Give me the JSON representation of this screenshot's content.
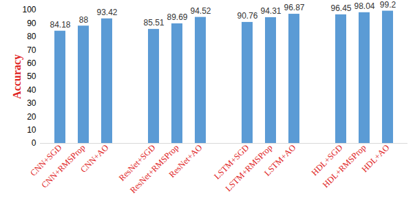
{
  "chart_data": {
    "type": "bar",
    "y_label": "Accuracy",
    "categories": [
      "CNN+SGD",
      "CNN+RMSProp",
      "CNN+AO",
      null,
      "ResNet+SGD",
      "ResNet+RMSProp",
      "ResNet+AO",
      null,
      "LSTM+SGD",
      "LSTM+RMSProp",
      "LSTM+AO",
      null,
      "HDL+SGD",
      "HDL+RMSProp",
      "HDL+AO"
    ],
    "values": [
      84.18,
      88,
      93.42,
      null,
      85.51,
      89.69,
      94.52,
      null,
      90.76,
      94.31,
      96.87,
      null,
      96.45,
      98.04,
      99.2
    ],
    "color": "#5b9bd5",
    "ylim": [
      0,
      100
    ],
    "yticks": [
      0,
      10,
      20,
      30,
      40,
      50,
      60,
      70,
      80,
      90,
      100
    ],
    "grid": false,
    "data_labels": true
  }
}
